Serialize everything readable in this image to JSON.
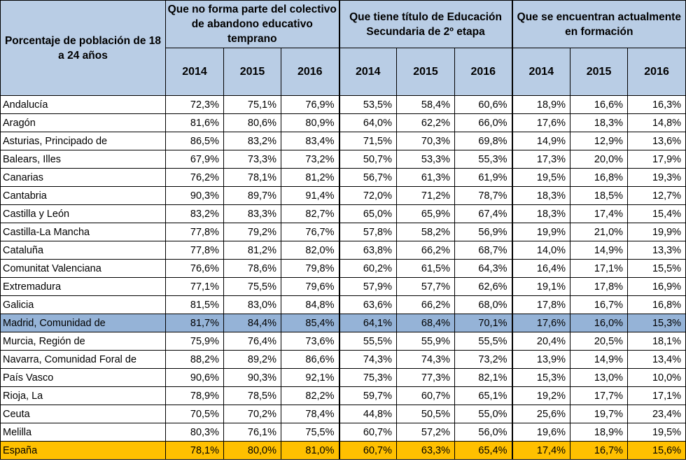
{
  "table": {
    "corner_label": "Porcentaje de población de 18 a 24 años",
    "groups": [
      {
        "label": "Que no forma parte del colectivo de abandono educativo temprano",
        "years": [
          "2014",
          "2015",
          "2016"
        ]
      },
      {
        "label": "Que tiene título de Educación Secundaria de 2º etapa",
        "years": [
          "2014",
          "2015",
          "2016"
        ]
      },
      {
        "label": "Que se encuentran actualmente en formación",
        "years": [
          "2014",
          "2015",
          "2016"
        ]
      }
    ],
    "highlight_colors": {
      "header": "#b9cde5",
      "madrid": "#95b3d7",
      "espana": "#ffc000"
    },
    "rows": [
      {
        "region": "Andalucía",
        "values": [
          "72,3%",
          "75,1%",
          "76,9%",
          "53,5%",
          "58,4%",
          "60,6%",
          "18,9%",
          "16,6%",
          "16,3%"
        ]
      },
      {
        "region": "Aragón",
        "values": [
          "81,6%",
          "80,6%",
          "80,9%",
          "64,0%",
          "62,2%",
          "66,0%",
          "17,6%",
          "18,3%",
          "14,8%"
        ]
      },
      {
        "region": "Asturias, Principado de",
        "values": [
          "86,5%",
          "83,2%",
          "83,4%",
          "71,5%",
          "70,3%",
          "69,8%",
          "14,9%",
          "12,9%",
          "13,6%"
        ]
      },
      {
        "region": "Balears, Illes",
        "values": [
          "67,9%",
          "73,3%",
          "73,2%",
          "50,7%",
          "53,3%",
          "55,3%",
          "17,3%",
          "20,0%",
          "17,9%"
        ]
      },
      {
        "region": "Canarias",
        "values": [
          "76,2%",
          "78,1%",
          "81,2%",
          "56,7%",
          "61,3%",
          "61,9%",
          "19,5%",
          "16,8%",
          "19,3%"
        ]
      },
      {
        "region": "Cantabria",
        "values": [
          "90,3%",
          "89,7%",
          "91,4%",
          "72,0%",
          "71,2%",
          "78,7%",
          "18,3%",
          "18,5%",
          "12,7%"
        ]
      },
      {
        "region": "Castilla y León",
        "values": [
          "83,2%",
          "83,3%",
          "82,7%",
          "65,0%",
          "65,9%",
          "67,4%",
          "18,3%",
          "17,4%",
          "15,4%"
        ]
      },
      {
        "region": "Castilla-La Mancha",
        "values": [
          "77,8%",
          "79,2%",
          "76,7%",
          "57,8%",
          "58,2%",
          "56,9%",
          "19,9%",
          "21,0%",
          "19,9%"
        ]
      },
      {
        "region": "Cataluña",
        "values": [
          "77,8%",
          "81,2%",
          "82,0%",
          "63,8%",
          "66,2%",
          "68,7%",
          "14,0%",
          "14,9%",
          "13,3%"
        ]
      },
      {
        "region": "Comunitat Valenciana",
        "values": [
          "76,6%",
          "78,6%",
          "79,8%",
          "60,2%",
          "61,5%",
          "64,3%",
          "16,4%",
          "17,1%",
          "15,5%"
        ]
      },
      {
        "region": "Extremadura",
        "values": [
          "77,1%",
          "75,5%",
          "79,6%",
          "57,9%",
          "57,7%",
          "62,6%",
          "19,1%",
          "17,8%",
          "16,9%"
        ]
      },
      {
        "region": "Galicia",
        "values": [
          "81,5%",
          "83,0%",
          "84,8%",
          "63,6%",
          "66,2%",
          "68,0%",
          "17,8%",
          "16,7%",
          "16,8%"
        ]
      },
      {
        "region": "Madrid, Comunidad de",
        "values": [
          "81,7%",
          "84,4%",
          "85,4%",
          "64,1%",
          "68,4%",
          "70,1%",
          "17,6%",
          "16,0%",
          "15,3%"
        ],
        "highlight": "madrid"
      },
      {
        "region": "Murcia, Región de",
        "values": [
          "75,9%",
          "76,4%",
          "73,6%",
          "55,5%",
          "55,9%",
          "55,5%",
          "20,4%",
          "20,5%",
          "18,1%"
        ]
      },
      {
        "region": "Navarra, Comunidad Foral de",
        "values": [
          "88,2%",
          "89,2%",
          "86,6%",
          "74,3%",
          "74,3%",
          "73,2%",
          "13,9%",
          "14,9%",
          "13,4%"
        ]
      },
      {
        "region": "País Vasco",
        "values": [
          "90,6%",
          "90,3%",
          "92,1%",
          "75,3%",
          "77,3%",
          "82,1%",
          "15,3%",
          "13,0%",
          "10,0%"
        ]
      },
      {
        "region": "Rioja, La",
        "values": [
          "78,9%",
          "78,5%",
          "82,2%",
          "59,7%",
          "60,7%",
          "65,1%",
          "19,2%",
          "17,7%",
          "17,1%"
        ]
      },
      {
        "region": "Ceuta",
        "values": [
          "70,5%",
          "70,2%",
          "78,4%",
          "44,8%",
          "50,5%",
          "55,0%",
          "25,6%",
          "19,7%",
          "23,4%"
        ]
      },
      {
        "region": "Melilla",
        "values": [
          "80,3%",
          "76,1%",
          "75,5%",
          "60,7%",
          "57,2%",
          "56,0%",
          "19,6%",
          "18,9%",
          "19,5%"
        ]
      },
      {
        "region": "España",
        "values": [
          "78,1%",
          "80,0%",
          "81,0%",
          "60,7%",
          "63,3%",
          "65,4%",
          "17,4%",
          "16,7%",
          "15,6%"
        ],
        "highlight": "espana"
      }
    ]
  }
}
